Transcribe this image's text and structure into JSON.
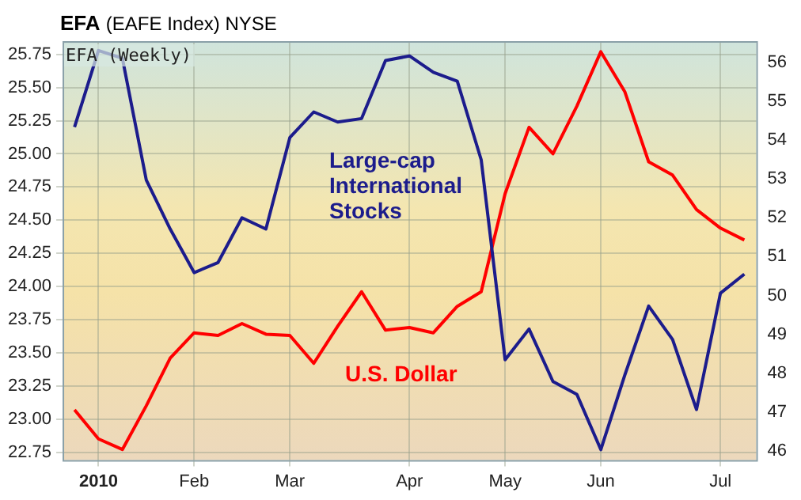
{
  "chart_data": {
    "type": "line",
    "title": "EFA (EAFE Index) NYSE",
    "annotations": [
      "EFA (Weekly)"
    ],
    "categories": [
      null,
      "2010",
      null,
      null,
      null,
      "Feb",
      null,
      null,
      null,
      "Mar",
      null,
      null,
      null,
      null,
      "Apr",
      null,
      null,
      null,
      "May",
      null,
      null,
      null,
      "Jun",
      null,
      null,
      null,
      null,
      "Jul",
      null
    ],
    "series": [
      {
        "name": "Large-cap International Stocks",
        "color": "#1c1c8c",
        "axis": "y2",
        "values": [
          54.33,
          56.3,
          56.1,
          52.97,
          51.71,
          50.59,
          50.85,
          52.0,
          51.71,
          54.06,
          54.72,
          54.46,
          54.55,
          56.04,
          56.16,
          55.74,
          55.51,
          53.49,
          48.35,
          49.14,
          47.79,
          47.46,
          46.04,
          47.95,
          49.73,
          48.87,
          47.07,
          50.06,
          50.55
        ]
      },
      {
        "name": "U.S. Dollar",
        "color": "#ff0000",
        "values": [
          23.07,
          22.85,
          22.77,
          23.1,
          23.46,
          23.65,
          23.63,
          23.72,
          23.64,
          23.63,
          23.42,
          23.7,
          23.96,
          23.67,
          23.69,
          23.65,
          23.85,
          23.96,
          24.7,
          25.2,
          25.0,
          25.36,
          25.77,
          25.47,
          24.94,
          24.84,
          24.58,
          24.44,
          24.35
        ]
      }
    ],
    "ylim": [
      22.69,
      25.85
    ],
    "yticks": [
      {
        "value": 22.75,
        "label": "22.75"
      },
      {
        "value": 23,
        "label": "23.00"
      },
      {
        "value": 23.25,
        "label": "23.25"
      },
      {
        "value": 23.5,
        "label": "23.50"
      },
      {
        "value": 23.75,
        "label": "23.75"
      },
      {
        "value": 24,
        "label": "24.00"
      },
      {
        "value": 24.25,
        "label": "24.25"
      },
      {
        "value": 24.5,
        "label": "24.50"
      },
      {
        "value": 24.75,
        "label": "24.75"
      },
      {
        "value": 25,
        "label": "25.00"
      },
      {
        "value": 25.25,
        "label": "25.25"
      },
      {
        "value": 25.5,
        "label": "25.50"
      },
      {
        "value": 25.75,
        "label": "25.75"
      }
    ],
    "y2lim": [
      45.77,
      56.54
    ],
    "y2ticks": [
      46,
      47,
      48,
      49,
      50,
      51,
      52,
      53,
      54,
      55,
      56
    ],
    "grid": true,
    "marker": "none",
    "line_style": "solid"
  }
}
